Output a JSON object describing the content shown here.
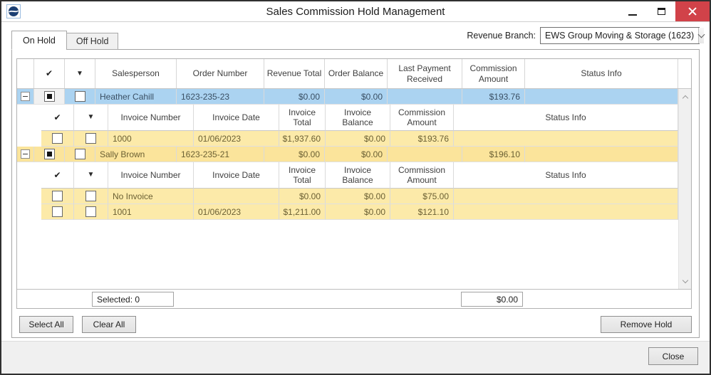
{
  "window": {
    "title": "Sales Commission Hold Management"
  },
  "titlebar_icons": {
    "app_icon": "ews-logo",
    "minimize_icon": "minimize-dash",
    "maximize_icon": "maximize-square",
    "close_icon": "close-x"
  },
  "tabs": {
    "on_hold": "On Hold",
    "off_hold": "Off Hold"
  },
  "revenue_branch": {
    "label": "Revenue Branch:",
    "value": "EWS Group Moving & Storage (1623)"
  },
  "grid": {
    "main_headers": [
      {
        "key": "expander",
        "label": ""
      },
      {
        "key": "check",
        "label": "✔"
      },
      {
        "key": "arrow",
        "label": "▼"
      },
      {
        "key": "salesperson",
        "label": "Salesperson"
      },
      {
        "key": "order_number",
        "label": "Order Number"
      },
      {
        "key": "revenue_total",
        "label": "Revenue Total"
      },
      {
        "key": "order_balance",
        "label": "Order Balance"
      },
      {
        "key": "last_payment_received",
        "label": "Last Payment Received"
      },
      {
        "key": "commission_amount",
        "label": "Commission Amount"
      },
      {
        "key": "status_info",
        "label": "Status Info"
      }
    ],
    "sub_headers": [
      {
        "key": "check",
        "label": "✔"
      },
      {
        "key": "arrow",
        "label": "▼"
      },
      {
        "key": "invoice_number",
        "label": "Invoice Number"
      },
      {
        "key": "invoice_date",
        "label": "Invoice Date"
      },
      {
        "key": "invoice_total",
        "label": "Invoice Total"
      },
      {
        "key": "invoice_balance",
        "label": "Invoice Balance"
      },
      {
        "key": "commission_amount",
        "label": "Commission Amount"
      },
      {
        "key": "status_info",
        "label": "Status Info"
      }
    ],
    "orders": [
      {
        "salesperson": "Heather Cahill",
        "order_number": "1623-235-23",
        "revenue_total": "$0.00",
        "order_balance": "$0.00",
        "last_payment_received": "",
        "commission_amount": "$193.76",
        "status_info": "",
        "selected": true,
        "expanded": true,
        "hold_check": "indeterminate",
        "row_check": "unchecked",
        "invoices": [
          {
            "check1": "unchecked",
            "check2": "unchecked",
            "invoice_number": "1000",
            "invoice_date": "01/06/2023",
            "invoice_total": "$1,937.60",
            "invoice_balance": "$0.00",
            "commission_amount": "$193.76",
            "status_info": ""
          }
        ]
      },
      {
        "salesperson": "Sally Brown",
        "order_number": "1623-235-21",
        "revenue_total": "$0.00",
        "order_balance": "$0.00",
        "last_payment_received": "",
        "commission_amount": "$196.10",
        "status_info": "",
        "selected": false,
        "expanded": true,
        "hold_check": "indeterminate",
        "row_check": "unchecked",
        "invoices": [
          {
            "check1": "unchecked",
            "check2": "unchecked",
            "invoice_number": "No Invoice",
            "invoice_date": "",
            "invoice_total": "$0.00",
            "invoice_balance": "$0.00",
            "commission_amount": "$75.00",
            "status_info": ""
          },
          {
            "check1": "unchecked",
            "check2": "unchecked",
            "invoice_number": "1001",
            "invoice_date": "01/06/2023",
            "invoice_total": "$1,211.00",
            "invoice_balance": "$0.00",
            "commission_amount": "$121.10",
            "status_info": ""
          }
        ]
      }
    ],
    "footer": {
      "selected_text": "Selected: 0",
      "total_amount": "$0.00"
    }
  },
  "buttons": {
    "select_all": "Select All",
    "clear_all": "Clear All",
    "remove_hold": "Remove Hold",
    "close": "Close"
  },
  "colors": {
    "selected_row": "#abd3f1",
    "hold_row": "#fbe49b",
    "hold_subrow": "#fceaa9",
    "close_button": "#d14249",
    "header_text": "#3f3f3f",
    "yellow_row_text": "#6b6034",
    "blue_row_text": "#3a4f63"
  }
}
